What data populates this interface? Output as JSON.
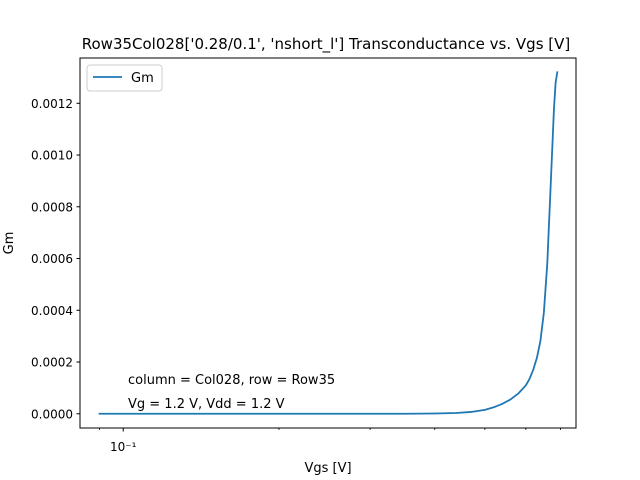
{
  "chart_data": {
    "type": "line",
    "title": "Row35Col028['0.28/0.1', 'nshort_l'] Transconductance vs. Vgs [V]",
    "xlabel": "Vgs [V]",
    "ylabel": "Gm",
    "xscale": "log",
    "xlim": [
      0.0825,
      0.75
    ],
    "ylim": [
      -5.5e-05,
      0.001375
    ],
    "yticks": [
      0,
      0.0002,
      0.0004,
      0.0006,
      0.0008,
      0.001,
      0.0012
    ],
    "ytick_labels": [
      "0.0000",
      "0.0002",
      "0.0004",
      "0.0006",
      "0.0008",
      "0.0010",
      "0.0012"
    ],
    "xticks_major": [
      0.1
    ],
    "xtick_major_labels": [
      "10⁻¹"
    ],
    "xticks_minor": [
      0.09,
      0.2,
      0.3,
      0.4,
      0.5,
      0.6,
      0.7
    ],
    "grid": false,
    "legend": {
      "placement": "upper left",
      "entries": [
        "Gm"
      ]
    },
    "annotations": [
      "column = Col028, row = Row35",
      "Vg = 1.2 V, Vdd = 1.2 V"
    ],
    "series": [
      {
        "name": "Gm",
        "color": "#1f77b4",
        "x": [
          0.09,
          0.15,
          0.25,
          0.35,
          0.4,
          0.44,
          0.47,
          0.5,
          0.52,
          0.54,
          0.56,
          0.58,
          0.6,
          0.61,
          0.62,
          0.63,
          0.64,
          0.65,
          0.66,
          0.67,
          0.68,
          0.685,
          0.69
        ],
        "y": [
          0.0,
          0.0,
          0.0,
          0.0,
          1e-06,
          3e-06,
          7e-06,
          1.5e-05,
          2.5e-05,
          3.8e-05,
          5.5e-05,
          7.8e-05,
          0.00011,
          0.000135,
          0.00017,
          0.000215,
          0.00028,
          0.00039,
          0.00058,
          0.00088,
          0.00118,
          0.00128,
          0.00132
        ]
      }
    ]
  }
}
